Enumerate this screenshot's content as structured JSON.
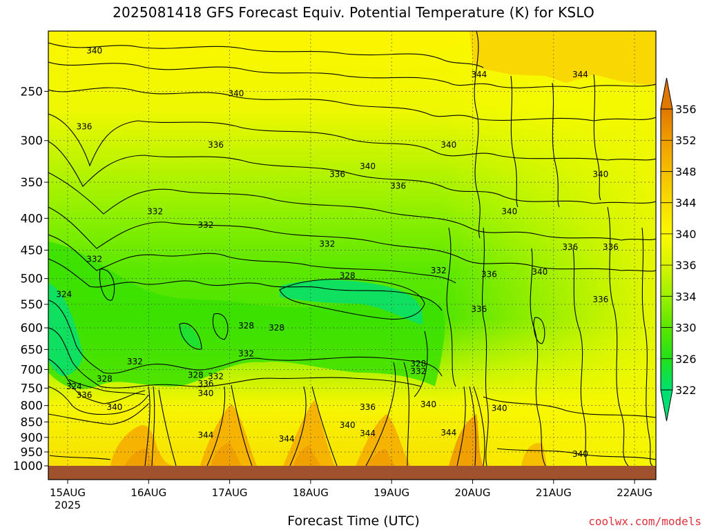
{
  "chart_data": {
    "type": "heatmap",
    "title": "2025081418 GFS Forecast Equiv. Potential Temperature (K) for KSLO",
    "xlabel": "Forecast Time (UTC)",
    "ylabel": "",
    "x_ticks": [
      "15AUG",
      "16AUG",
      "17AUG",
      "18AUG",
      "19AUG",
      "20AUG",
      "21AUG",
      "22AUG"
    ],
    "x_year": "2025",
    "y_ticks": [
      250,
      300,
      350,
      400,
      450,
      500,
      550,
      600,
      650,
      700,
      750,
      800,
      850,
      900,
      950,
      1000
    ],
    "y_scale": "log-pressure",
    "ylim": [
      1000,
      200
    ],
    "grid": true,
    "colorbar": {
      "levels": [
        322,
        326,
        330,
        334,
        336,
        340,
        344,
        348,
        352,
        356
      ],
      "colors": [
        "#00e070",
        "#22e01a",
        "#5ae600",
        "#9af000",
        "#d6f400",
        "#fafa00",
        "#f8de00",
        "#f6c000",
        "#f0a000",
        "#e07800"
      ]
    },
    "contour_labels": [
      {
        "text": "340",
        "time": "15AUG 12Z",
        "p": 215
      },
      {
        "text": "340",
        "time": "17AUG 06Z",
        "p": 252
      },
      {
        "text": "344",
        "time": "20AUG 06Z",
        "p": 235
      },
      {
        "text": "344",
        "time": "21AUG 12Z",
        "p": 235
      },
      {
        "text": "336",
        "time": "15AUG 09Z",
        "p": 285
      },
      {
        "text": "336",
        "time": "17AUG 00Z",
        "p": 305
      },
      {
        "text": "336",
        "time": "18AUG 12Z",
        "p": 340
      },
      {
        "text": "340",
        "time": "18AUG 21Z",
        "p": 330
      },
      {
        "text": "340",
        "time": "19AUG 21Z",
        "p": 305
      },
      {
        "text": "336",
        "time": "19AUG 06Z",
        "p": 355
      },
      {
        "text": "340",
        "time": "21AUG 18Z",
        "p": 340
      },
      {
        "text": "340",
        "time": "20AUG 15Z",
        "p": 390
      },
      {
        "text": "332",
        "time": "16AUG 06Z",
        "p": 390
      },
      {
        "text": "332",
        "time": "16AUG 21Z",
        "p": 410
      },
      {
        "text": "332",
        "time": "18AUG 09Z",
        "p": 440
      },
      {
        "text": "332",
        "time": "15AUG 12Z",
        "p": 465
      },
      {
        "text": "336",
        "time": "21AUG 09Z",
        "p": 445
      },
      {
        "text": "336",
        "time": "21AUG 21Z",
        "p": 445
      },
      {
        "text": "332",
        "time": "19AUG 18Z",
        "p": 485
      },
      {
        "text": "328",
        "time": "18AUG 15Z",
        "p": 495
      },
      {
        "text": "336",
        "time": "20AUG 09Z",
        "p": 492
      },
      {
        "text": "340",
        "time": "21AUG 00Z",
        "p": 488
      },
      {
        "text": "324",
        "time": "15AUG 03Z",
        "p": 530
      },
      {
        "text": "336",
        "time": "20AUG 06Z",
        "p": 560
      },
      {
        "text": "336",
        "time": "21AUG 18Z",
        "p": 540
      },
      {
        "text": "328",
        "time": "17AUG 09Z",
        "p": 595
      },
      {
        "text": "328",
        "time": "17AUG 18Z",
        "p": 600
      },
      {
        "text": "332",
        "time": "17AUG 09Z",
        "p": 660
      },
      {
        "text": "332",
        "time": "16AUG 00Z",
        "p": 680
      },
      {
        "text": "328",
        "time": "16AUG 18Z",
        "p": 715
      },
      {
        "text": "332",
        "time": "17AUG 00Z",
        "p": 718
      },
      {
        "text": "328",
        "time": "19AUG 12Z",
        "p": 685
      },
      {
        "text": "332",
        "time": "19AUG 12Z",
        "p": 705
      },
      {
        "text": "328",
        "time": "15AUG 15Z",
        "p": 725
      },
      {
        "text": "336",
        "time": "16AUG 21Z",
        "p": 738
      },
      {
        "text": "324",
        "time": "15AUG 06Z",
        "p": 745
      },
      {
        "text": "340",
        "time": "16AUG 21Z",
        "p": 765
      },
      {
        "text": "336",
        "time": "15AUG 09Z",
        "p": 770
      },
      {
        "text": "340",
        "time": "15AUG 18Z",
        "p": 805
      },
      {
        "text": "336",
        "time": "18AUG 21Z",
        "p": 805
      },
      {
        "text": "340",
        "time": "19AUG 15Z",
        "p": 797
      },
      {
        "text": "340",
        "time": "20AUG 12Z",
        "p": 808
      },
      {
        "text": "340",
        "time": "18AUG 15Z",
        "p": 860
      },
      {
        "text": "344",
        "time": "16AUG 21Z",
        "p": 892
      },
      {
        "text": "344",
        "time": "17AUG 21Z",
        "p": 905
      },
      {
        "text": "344",
        "time": "18AUG 21Z",
        "p": 887
      },
      {
        "text": "344",
        "time": "19AUG 21Z",
        "p": 885
      },
      {
        "text": "340",
        "time": "21AUG 12Z",
        "p": 958
      }
    ]
  },
  "x_axis_label": "Forecast Time (UTC)",
  "credit": "coolwx.com/models"
}
